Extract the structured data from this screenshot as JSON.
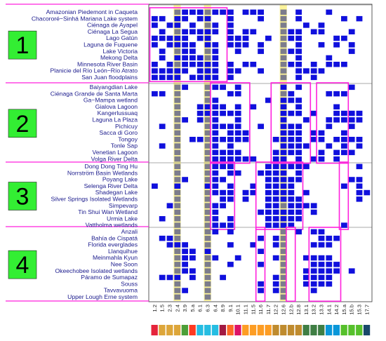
{
  "chart_data": {
    "type": "heatmap",
    "title": "",
    "xlabel": "",
    "ylabel": "",
    "colors": {
      "cell": "#1010dd",
      "highlight_column": "#fbf39a",
      "gray_cell": "#7c7c8c",
      "box": "#ff22dd",
      "group_label_bg": "#33ee33",
      "separator": "#ff22dd",
      "row_label": "#1a1a8c"
    },
    "columns": [
      "1.2",
      "1.5",
      "2.3",
      "2.4",
      "3.9",
      "5.a",
      "6.1",
      "6.3",
      "6.4",
      "8.9",
      "9.1",
      "10.1",
      "11.1",
      "11.5",
      "11.6",
      "11.7",
      "12.2",
      "12.6",
      "12.b",
      "12.8",
      "13.1",
      "13.2",
      "13.3",
      "14.1",
      "14.2",
      "15.a",
      "15.b",
      "15.3",
      "17.7"
    ],
    "highlighted_columns": [
      "2.4",
      "6.3",
      "12.6"
    ],
    "groups": [
      {
        "label": "1",
        "rows": [
          "Amazonian Piedemont in Caqueta",
          "Chacororé−Sinhá Mariana Lake system",
          "Ciénaga de Ayapel",
          "Ciénaga La Segua",
          "Lago Gatún",
          "Laguna de Fuquene",
          "Lake Victoria",
          "Mekong Delta",
          "Minnesota River Basin",
          "Planicie del Río León−Río Atrato",
          "San Juan floodplains"
        ],
        "boxes": [
          [
            0,
            9
          ]
        ],
        "matrix": [
          "00001110111011100001000100000",
          "11011011001000100001000001010",
          "10110100101000000000101000000",
          "01001111101011000011011000100",
          "11111011001110010011000011000",
          "10111101101110100001001010100",
          "01001100100100100011000000100",
          "01011110100000000001000100000",
          "10101111101011000011010111000",
          "11111011101100100001111000000",
          "11110111101000000001010000000"
        ]
      },
      {
        "label": "2",
        "rows": [
          "Baiyangdian Lake",
          "Ciénaga Grande de Santa Marta",
          "Ga−Mampa wetland",
          "Gialova Lagoon",
          "Kangerlussuaq",
          "Laguna La Plaza",
          "Pichicuy",
          "Sacca di Goro",
          "Tongoy",
          "Tonle Sap",
          "Venetian Lagoon",
          "Volga River Delta"
        ],
        "boxes": [
          [
            8,
            12
          ],
          [
            16,
            20
          ],
          [
            22,
            25
          ]
        ],
        "matrix": [
          "00001000110100000101000000100",
          "11000000001100000010000111000",
          "00000000100000010111000000000",
          "00000011110101000101000010000",
          "00000011111100000111010011110",
          "00001010100100000100100111110",
          "01000000111100100111000100100",
          "00000000101110000111011001000",
          "00000110111110001111011011110",
          "01000000101000000111100101010",
          "00000000111100001111001011100",
          "00000000111111001101011010000"
        ]
      },
      {
        "label": "3",
        "rows": [
          "Dong Dong Ting Hu",
          "Norrström Basin Wetlands",
          "Poyang Lake",
          "Selenga River Delta",
          "Shadegan Lake",
          "Silver Springs Isolated Wetlands",
          "Simpevarp",
          "Tin Shui Wan Wetland",
          "Urmia Lake",
          "Vattholma wetlands"
        ],
        "boxes": [
          [
            8,
            10
          ],
          [
            14,
            19
          ],
          [
            25,
            25
          ]
        ],
        "matrix": [
          "00000000111000011111100000010",
          "00000000101100111101000000000",
          "00001000110000011111000000110",
          "10010001101001011110000001010",
          "00000000111011011110100000011",
          "00000000011010011111000000010",
          "00100000110000011011110000000",
          "00000000100000111111010000000",
          "01000000101000011111000000000",
          "00000000111000011110000001000"
        ]
      },
      {
        "label": "4",
        "rows": [
          "Anzali",
          "Bahía de Cispatá",
          "Florida everglades",
          "Llanquihue",
          "Meinmahla Kyun",
          "Nee Soon",
          "Okeechobee Isolated wetlands",
          "Páramo de Sumapaz",
          "Souss",
          "Tavvavuoma",
          "Upper Lough Erne system"
        ],
        "boxes": [
          [
            14,
            14
          ],
          [
            18,
            18
          ],
          [
            21,
            24
          ]
        ],
        "matrix": [
          "00000000101000000001011000000",
          "01100000000000101000001110000",
          "00111000001001001000011100000",
          "00001101000000100000000000000",
          "00001100100100001000111100000",
          "00001000001000100000011110000",
          "00001100000000000000111110100",
          "01110100010000001000111100000",
          "00000000000000101000111100000",
          "00001000000000101000010000000",
          "00000000000000000000000000000"
        ]
      }
    ]
  }
}
